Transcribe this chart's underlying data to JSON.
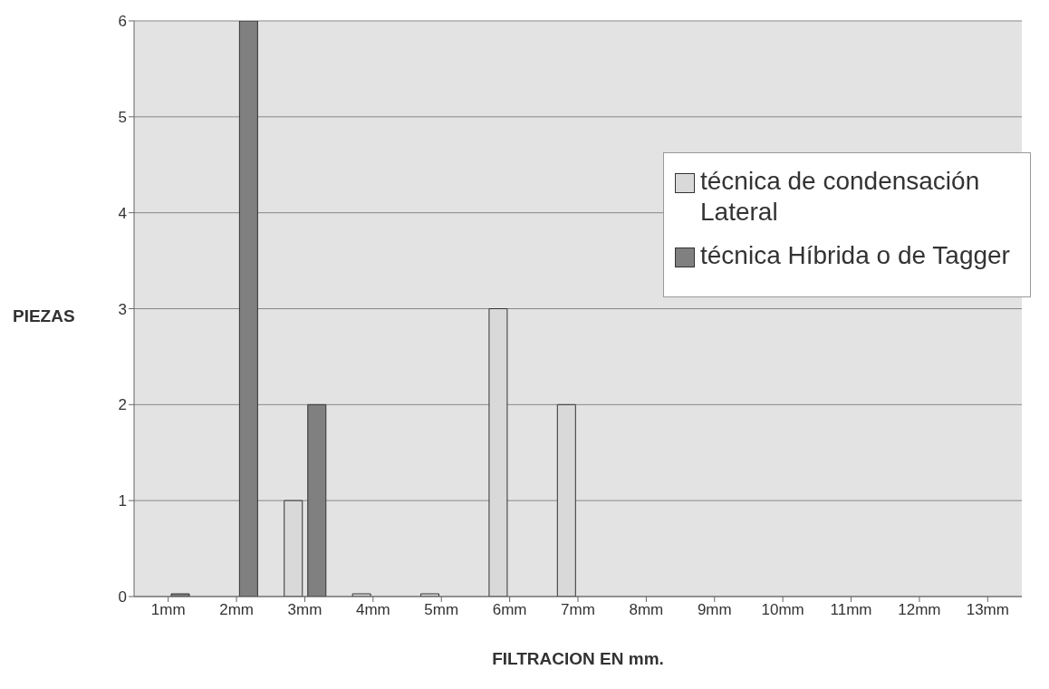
{
  "chart_data": {
    "type": "bar",
    "xlabel": "FILTRACION EN mm.",
    "ylabel": "PIEZAS",
    "categories": [
      "1mm",
      "2mm",
      "3mm",
      "4mm",
      "5mm",
      "6mm",
      "7mm",
      "8mm",
      "9mm",
      "10mm",
      "11mm",
      "12mm",
      "13mm"
    ],
    "series": [
      {
        "name": "técnica de condensación Lateral",
        "color": "#d9d9d9",
        "values": [
          null,
          null,
          1,
          0,
          0,
          3,
          2,
          null,
          null,
          null,
          null,
          null,
          null
        ]
      },
      {
        "name": "técnica Híbrida o de Tagger",
        "color": "#808080",
        "values": [
          0,
          6,
          2,
          null,
          null,
          null,
          null,
          null,
          null,
          null,
          null,
          null,
          null
        ]
      }
    ],
    "ylim": [
      0,
      6
    ],
    "yticks": [
      0,
      1,
      2,
      3,
      4,
      5,
      6
    ],
    "grid": "y",
    "legend": "right"
  }
}
